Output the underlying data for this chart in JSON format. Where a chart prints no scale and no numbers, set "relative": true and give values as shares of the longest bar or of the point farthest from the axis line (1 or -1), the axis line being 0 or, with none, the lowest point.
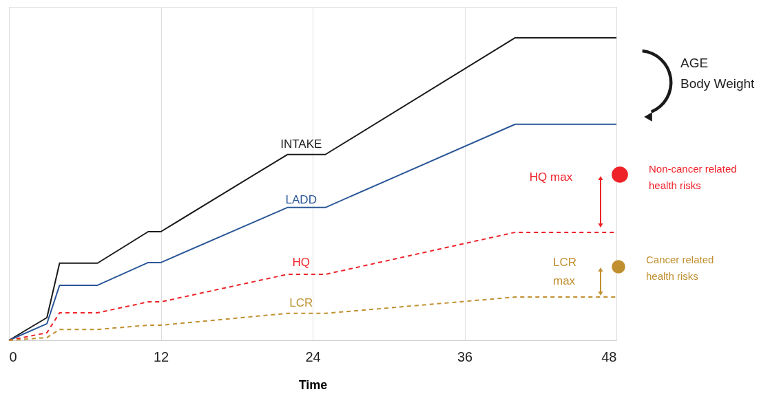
{
  "chart_data": {
    "type": "line",
    "relative": true,
    "xlabel": "Time",
    "xlim": [
      0,
      48
    ],
    "xticks": [
      0,
      12,
      24,
      36,
      48
    ],
    "grid": "x",
    "legend": false,
    "marker": "none",
    "x": [
      0,
      3,
      4,
      7,
      11,
      12,
      22,
      25,
      40,
      48
    ],
    "series": [
      {
        "name": "INTAKE",
        "color": "#1a1a1a",
        "line_style": "solid",
        "values": [
          0,
          0.075,
          0.255,
          0.255,
          0.359,
          0.359,
          0.614,
          0.614,
          1,
          1
        ]
      },
      {
        "name": "LADD",
        "color": "#2b5797",
        "line_style": "solid",
        "values": [
          0,
          0.055,
          0.182,
          0.182,
          0.257,
          0.257,
          0.439,
          0.439,
          0.714,
          0.714
        ]
      },
      {
        "name": "HQ",
        "color": "#ee2229",
        "line_style": "dashed",
        "values": [
          0,
          0.025,
          0.091,
          0.091,
          0.127,
          0.127,
          0.218,
          0.218,
          0.357,
          0.357
        ]
      },
      {
        "name": "LCR",
        "color": "#c09030",
        "line_style": "dashed",
        "values": [
          0,
          0.009,
          0.036,
          0.036,
          0.05,
          0.05,
          0.089,
          0.089,
          0.143,
          0.143
        ]
      }
    ],
    "annotations": [
      "AGE\nBody Weight",
      "HQ max",
      "Non-cancer related\nhealth risks",
      "LCR\nmax",
      "Cancer related\nhealth risks"
    ]
  }
}
